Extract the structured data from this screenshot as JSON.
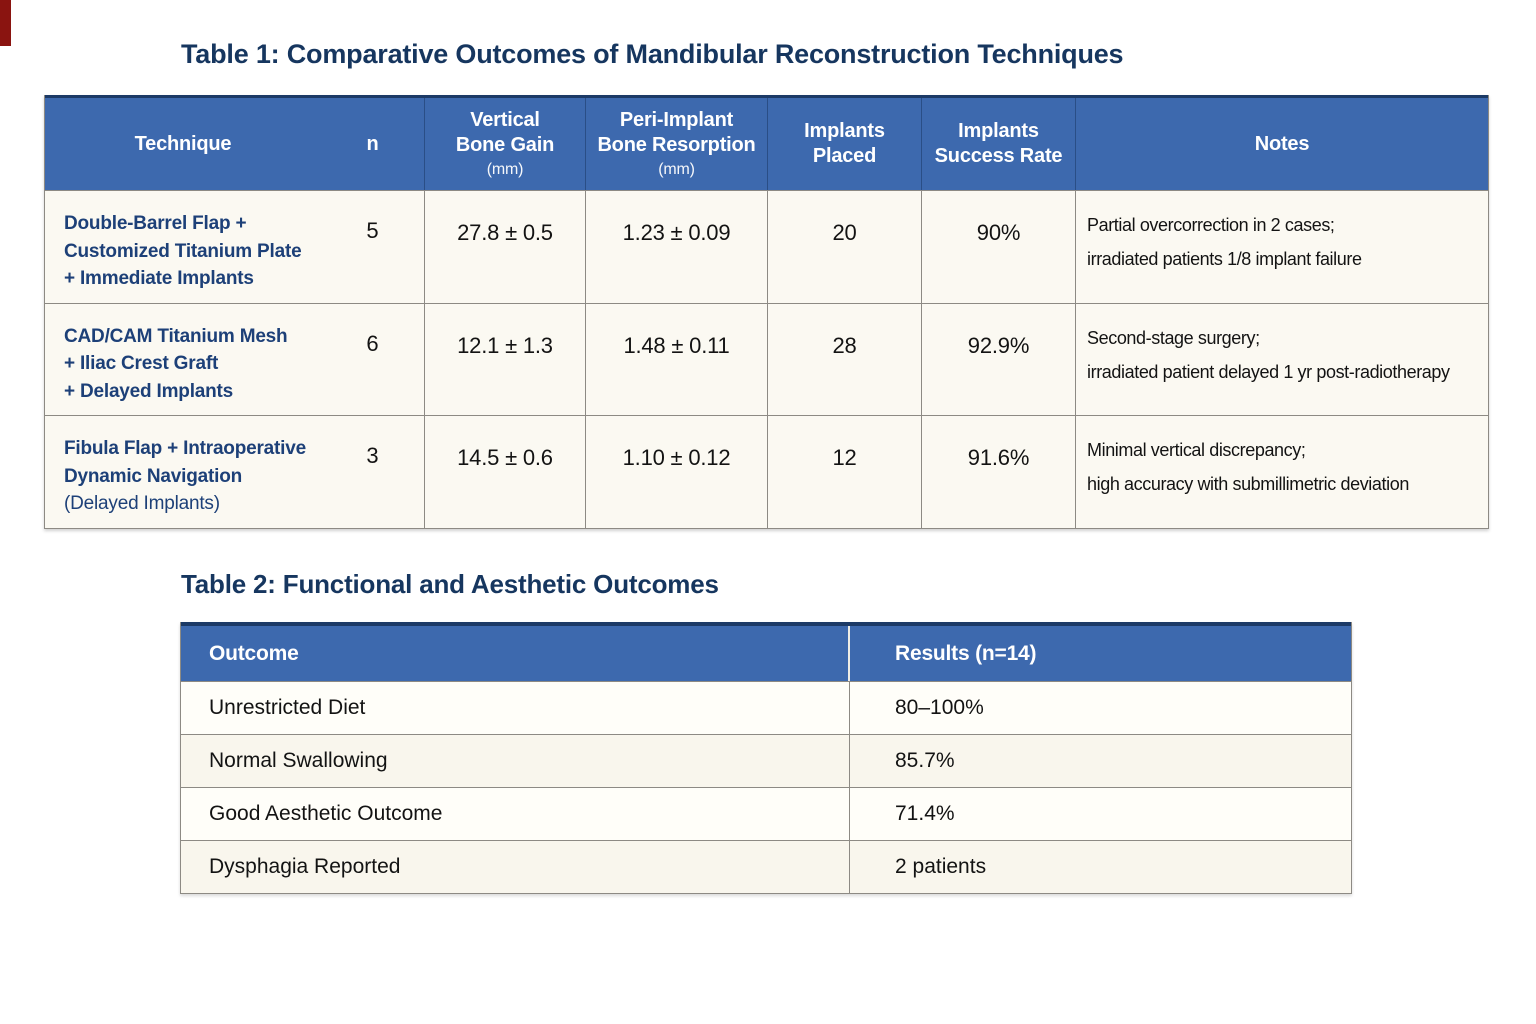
{
  "page": {
    "background": "#ffffff",
    "accent_blue": "#3d69ae",
    "navy": "#16365f",
    "border_gray": "#8d8a84",
    "cell_cream": "#fbf9f2",
    "corner_mark_color": "#8a1410"
  },
  "table1": {
    "caption": {
      "prefix": "Table 1:",
      "text": "Comparative Outcomes of Mandibular Reconstruction Techniques"
    },
    "headers": {
      "technique": "Technique",
      "n": "n",
      "vertical_bone_gain": {
        "line1": "Vertical",
        "line2": "Bone Gain",
        "unit": "(mm)"
      },
      "peri_implant_resorption": {
        "line1": "Peri-Implant",
        "line2": "Bone Resorption",
        "unit": "(mm)"
      },
      "implants_placed": {
        "line1": "Implants",
        "line2": "Placed"
      },
      "implants_success": {
        "line1": "Implants",
        "line2": "Success Rate"
      },
      "notes": "Notes"
    },
    "rows": [
      {
        "technique_lines": [
          "Double-Barrel Flap +",
          "Customized Titanium Plate",
          "+ Immediate Implants"
        ],
        "n": "5",
        "vertical_bone_gain_mm": "27.8 ± 0.5",
        "peri_implant_resorption_mm": "1.23 ± 0.09",
        "implants_placed": "20",
        "implants_success_rate": "90%",
        "notes_lines": [
          "Partial overcorrection in 2 cases;",
          "irradiated patients 1/8 implant failure"
        ]
      },
      {
        "technique_lines": [
          "CAD/CAM Titanium Mesh",
          "+ Iliac Crest Graft",
          "+ Delayed Implants"
        ],
        "n": "6",
        "vertical_bone_gain_mm": "12.1 ± 1.3",
        "peri_implant_resorption_mm": "1.48 ± 0.11",
        "implants_placed": "28",
        "implants_success_rate": "92.9%",
        "notes_lines": [
          "Second-stage surgery;",
          "irradiated patient delayed 1 yr post-radiotherapy"
        ]
      },
      {
        "technique_lines": [
          "Fibula Flap + Intraoperative",
          "Dynamic Navigation",
          "(Delayed Implants)"
        ],
        "n": "3",
        "vertical_bone_gain_mm": "14.5 ± 0.6",
        "peri_implant_resorption_mm": "1.10 ± 0.12",
        "implants_placed": "12",
        "implants_success_rate": "91.6%",
        "notes_lines": [
          "Minimal vertical discrepancy;",
          "high accuracy with submillimetric deviation"
        ]
      }
    ]
  },
  "table2": {
    "caption": {
      "prefix": "Table 2:",
      "text": "Functional and Aesthetic Outcomes"
    },
    "headers": {
      "outcome": "Outcome",
      "results": "Results (n=14)"
    },
    "rows": [
      {
        "outcome": "Unrestricted Diet",
        "result": "80–100%"
      },
      {
        "outcome": "Normal Swallowing",
        "result": "85.7%"
      },
      {
        "outcome": "Good Aesthetic Outcome",
        "result": "71.4%"
      },
      {
        "outcome": "Dysphagia Reported",
        "result": "2 patients"
      }
    ]
  }
}
